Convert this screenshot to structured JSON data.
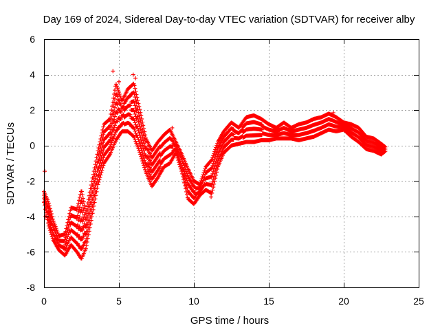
{
  "chart_data": {
    "type": "scatter",
    "title": "Day 169 of 2024, Sidereal Day-to-day VTEC variation (SDTVAR) for receiver alby",
    "xlabel": "GPS time / hours",
    "ylabel": "SDTVAR / TECUs",
    "xlim": [
      0,
      25
    ],
    "ylim": [
      -8,
      6
    ],
    "xticks": [
      0,
      5,
      10,
      15,
      20,
      25
    ],
    "yticks": [
      -8,
      -6,
      -4,
      -2,
      0,
      2,
      4,
      6
    ],
    "grid": true,
    "marker": "+",
    "colors": {
      "series": "#ff0000",
      "grid": "#a0a0a0",
      "axis": "#000000"
    },
    "series": [
      {
        "name": "SDTVAR",
        "band_envelope": [
          [
            0.0,
            -3.2,
            -2.6
          ],
          [
            0.3,
            -4.5,
            -3.2
          ],
          [
            0.6,
            -5.3,
            -4.2
          ],
          [
            1.0,
            -5.9,
            -5.1
          ],
          [
            1.4,
            -6.2,
            -5.0
          ],
          [
            1.8,
            -5.6,
            -3.5
          ],
          [
            2.2,
            -6.0,
            -3.6
          ],
          [
            2.5,
            -6.4,
            -2.5
          ],
          [
            2.8,
            -5.8,
            -3.8
          ],
          [
            3.2,
            -4.0,
            -2.0
          ],
          [
            3.6,
            -2.2,
            -0.3
          ],
          [
            4.0,
            -1.0,
            1.2
          ],
          [
            4.4,
            -0.5,
            1.5
          ],
          [
            4.8,
            0.3,
            3.5
          ],
          [
            5.2,
            0.8,
            2.5
          ],
          [
            5.6,
            0.8,
            3.2
          ],
          [
            6.0,
            0.5,
            3.5
          ],
          [
            6.4,
            -0.4,
            2.0
          ],
          [
            6.8,
            -1.5,
            0.4
          ],
          [
            7.2,
            -2.3,
            -0.3
          ],
          [
            7.6,
            -1.8,
            0.2
          ],
          [
            8.0,
            -1.2,
            0.6
          ],
          [
            8.4,
            -1.0,
            0.9
          ],
          [
            8.8,
            -0.4,
            0.2
          ],
          [
            9.2,
            -1.5,
            -0.5
          ],
          [
            9.6,
            -3.0,
            -1.3
          ],
          [
            10.0,
            -3.3,
            -2.0
          ],
          [
            10.4,
            -2.8,
            -2.2
          ],
          [
            10.8,
            -2.5,
            -1.2
          ],
          [
            11.2,
            -2.7,
            -0.8
          ],
          [
            11.6,
            -1.2,
            0.2
          ],
          [
            12.0,
            -0.4,
            0.8
          ],
          [
            12.5,
            0.0,
            1.3
          ],
          [
            13.0,
            0.1,
            1.0
          ],
          [
            13.5,
            0.2,
            1.6
          ],
          [
            14.0,
            0.2,
            1.7
          ],
          [
            14.5,
            0.3,
            1.5
          ],
          [
            15.0,
            0.3,
            1.2
          ],
          [
            15.5,
            0.4,
            1.0
          ],
          [
            16.0,
            0.4,
            1.3
          ],
          [
            16.5,
            0.4,
            1.0
          ],
          [
            17.0,
            0.3,
            1.2
          ],
          [
            17.5,
            0.4,
            1.3
          ],
          [
            18.0,
            0.5,
            1.5
          ],
          [
            18.5,
            0.7,
            1.6
          ],
          [
            19.0,
            0.9,
            1.8
          ],
          [
            19.5,
            0.8,
            1.6
          ],
          [
            20.0,
            0.9,
            1.3
          ],
          [
            20.5,
            0.5,
            1.2
          ],
          [
            21.0,
            0.2,
            1.0
          ],
          [
            21.5,
            -0.2,
            0.5
          ],
          [
            22.0,
            -0.3,
            0.4
          ],
          [
            22.5,
            -0.5,
            0.1
          ],
          [
            22.8,
            -0.3,
            -0.1
          ]
        ],
        "outliers": [
          [
            0.05,
            -1.45
          ],
          [
            0.1,
            -4.0
          ],
          [
            4.6,
            4.2
          ],
          [
            5.0,
            3.6
          ],
          [
            5.95,
            4.0
          ],
          [
            6.1,
            3.8
          ],
          [
            8.55,
            1.0
          ],
          [
            11.15,
            -2.9
          ],
          [
            19.3,
            1.85
          ]
        ]
      }
    ]
  }
}
